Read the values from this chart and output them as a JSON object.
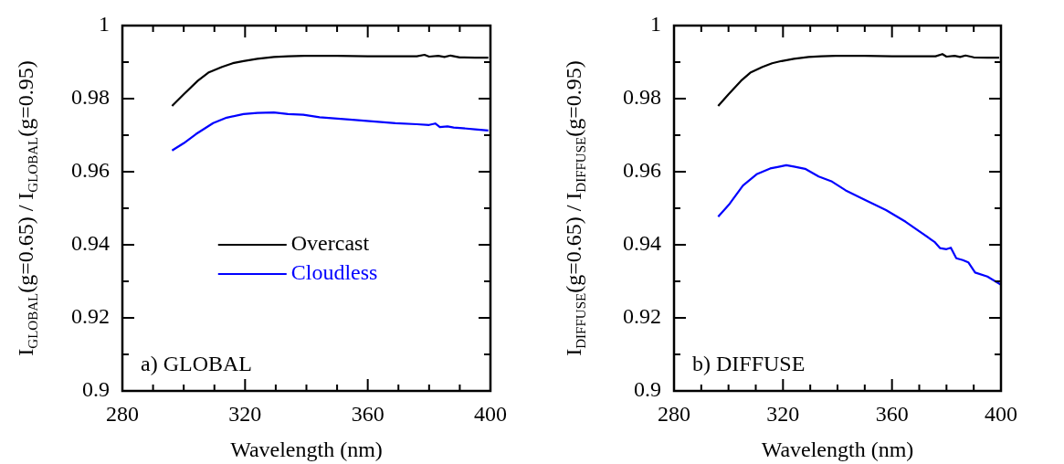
{
  "chart_data": [
    {
      "type": "line",
      "xlabel": "Wavelength (nm)",
      "ylabel": "I$_{GLOBAL}$(g=0.65) / I$_{GLOBAL}$(g=0.95)",
      "annotations": [
        "a) GLOBAL"
      ],
      "legend": "left",
      "marker": "none",
      "xlim": [
        280,
        400
      ],
      "xticks": [
        280,
        {
          "value": 290,
          "label": null
        },
        {
          "value": 300,
          "label": null
        },
        {
          "value": 310,
          "label": null
        },
        320,
        {
          "value": 330,
          "label": null
        },
        {
          "value": 340,
          "label": null
        },
        {
          "value": 350,
          "label": null
        },
        360,
        {
          "value": 370,
          "label": null
        },
        {
          "value": 380,
          "label": null
        },
        {
          "value": 390,
          "label": null
        },
        400
      ],
      "ylim": [
        0.9,
        1
      ],
      "yticks": [
        0.9,
        {
          "value": 0.91,
          "label": null
        },
        0.92,
        {
          "value": 0.93,
          "label": null
        },
        0.94,
        {
          "value": 0.95,
          "label": null
        },
        0.96,
        {
          "value": 0.97,
          "label": null
        },
        0.98,
        {
          "value": 0.99,
          "label": null
        },
        1
      ],
      "series": [
        {
          "name": "Overcast",
          "color": "#000000",
          "x": [
            296.2,
            300,
            304.6,
            308,
            312.5,
            316,
            319.5,
            324,
            329.4,
            334,
            339.3,
            350,
            360,
            370,
            376,
            378.5,
            380,
            383,
            385,
            387,
            390,
            395,
            399.3
          ],
          "values": [
            0.978,
            0.9812,
            0.9849,
            0.9871,
            0.9887,
            0.9897,
            0.9903,
            0.9909,
            0.9914,
            0.9916,
            0.9917,
            0.9917,
            0.9916,
            0.9916,
            0.9916,
            0.992,
            0.9915,
            0.9917,
            0.9914,
            0.9918,
            0.9913,
            0.9912,
            0.9912
          ]
        },
        {
          "name": "Cloudless",
          "color": "#0000ff",
          "x": [
            296.2,
            300,
            304,
            309.6,
            314,
            319.5,
            324,
            329.4,
            334,
            339,
            344.3,
            355,
            369,
            376,
            380,
            382,
            383.5,
            386,
            388,
            391,
            395,
            399.3
          ],
          "values": [
            0.9658,
            0.9678,
            0.9703,
            0.9733,
            0.9748,
            0.9758,
            0.9761,
            0.9762,
            0.9758,
            0.9756,
            0.9749,
            0.9742,
            0.9733,
            0.973,
            0.9728,
            0.9732,
            0.9722,
            0.9724,
            0.9721,
            0.9719,
            0.9716,
            0.9713
          ]
        }
      ]
    },
    {
      "type": "line",
      "xlabel": "Wavelength (nm)",
      "ylabel": "I$_{DIFFUSE}$(g=0.65) / I$_{DIFFUSE}$(g=0.95)",
      "annotations": [
        "b) DIFFUSE"
      ],
      "marker": "none",
      "xlim": [
        280,
        400
      ],
      "xticks": [
        280,
        {
          "value": 290,
          "label": null
        },
        {
          "value": 300,
          "label": null
        },
        {
          "value": 310,
          "label": null
        },
        320,
        {
          "value": 330,
          "label": null
        },
        {
          "value": 340,
          "label": null
        },
        {
          "value": 350,
          "label": null
        },
        360,
        {
          "value": 370,
          "label": null
        },
        {
          "value": 380,
          "label": null
        },
        {
          "value": 390,
          "label": null
        },
        400
      ],
      "ylim": [
        0.9,
        1
      ],
      "yticks": [
        0.9,
        {
          "value": 0.91,
          "label": null
        },
        0.92,
        {
          "value": 0.93,
          "label": null
        },
        0.94,
        {
          "value": 0.95,
          "label": null
        },
        0.96,
        {
          "value": 0.97,
          "label": null
        },
        0.98,
        {
          "value": 0.99,
          "label": null
        },
        1
      ],
      "series": [
        {
          "color": "#000000",
          "x": [
            296.2,
            300,
            304.6,
            308,
            312.5,
            316,
            319.5,
            324,
            329.4,
            334,
            339.3,
            350,
            360,
            370,
            376,
            378.5,
            380,
            383,
            385,
            387,
            390,
            395,
            399.3
          ],
          "values": [
            0.978,
            0.9812,
            0.9849,
            0.9871,
            0.9887,
            0.9897,
            0.9903,
            0.9909,
            0.9914,
            0.9916,
            0.9917,
            0.9917,
            0.9916,
            0.9916,
            0.9916,
            0.9922,
            0.9915,
            0.9917,
            0.9914,
            0.9918,
            0.9913,
            0.9912,
            0.9912
          ]
        },
        {
          "color": "#0000ff",
          "x": [
            296.2,
            300.4,
            305.3,
            310.3,
            315.3,
            318,
            321.2,
            324,
            328.1,
            333.1,
            338,
            343,
            350,
            357.8,
            365,
            375.6,
            377.6,
            380,
            381.6,
            383.6,
            386,
            388,
            390.5,
            395,
            399.9
          ],
          "values": [
            0.9477,
            0.9512,
            0.9562,
            0.9593,
            0.9609,
            0.9613,
            0.9618,
            0.9614,
            0.9608,
            0.9587,
            0.9573,
            0.9549,
            0.9523,
            0.9495,
            0.9463,
            0.9408,
            0.9391,
            0.9388,
            0.9392,
            0.9363,
            0.9358,
            0.9352,
            0.9324,
            0.9313,
            0.9291
          ]
        }
      ]
    }
  ]
}
